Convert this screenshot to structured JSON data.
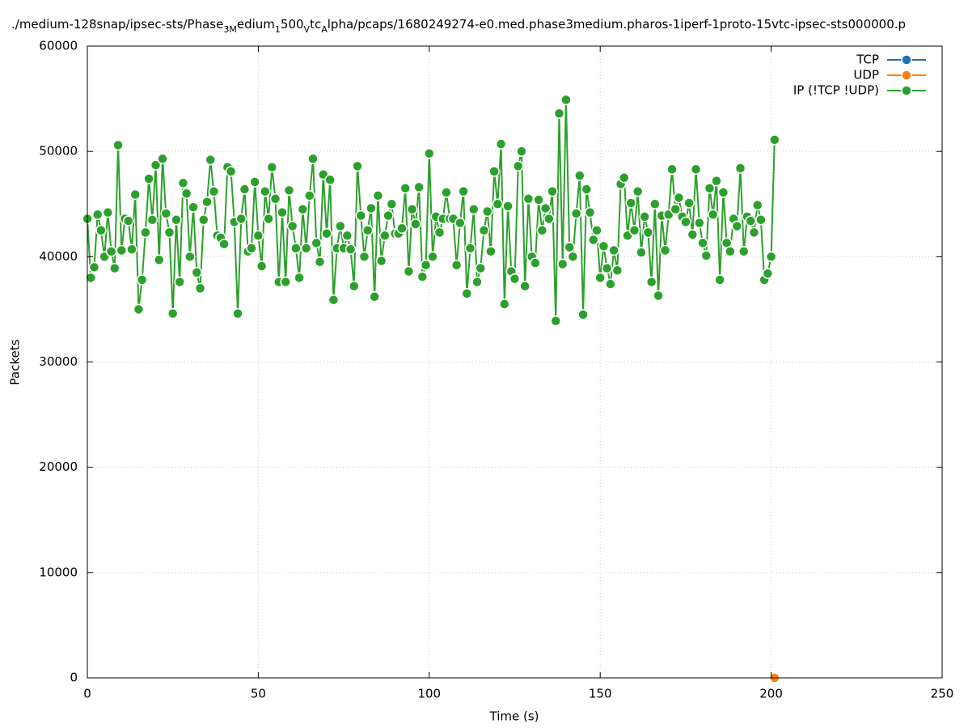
{
  "chart_data": {
    "type": "line",
    "title": [
      "./medium-128snap/ipsec-sts/Phase",
      "3M",
      "edium",
      "1",
      "500",
      "V",
      "tc",
      "A",
      "lpha/pcaps/1680249274-e0.med.phase3medium.pharos-1iperf-1proto-15vtc-ipsec-sts000000.p"
    ],
    "x_label": "Time (s)",
    "y_label": "Packets",
    "xlim": [
      0,
      250
    ],
    "xticks": [
      0,
      50,
      100,
      150,
      200,
      250
    ],
    "ylim": [
      0,
      60000
    ],
    "yticks": [
      0,
      10000,
      20000,
      30000,
      40000,
      50000,
      60000
    ],
    "grid": true,
    "legend": "top-right",
    "series": [
      {
        "name": "TCP",
        "color": "#1f6fb5",
        "x": [
          201
        ],
        "values": [
          0
        ]
      },
      {
        "name": "UDP",
        "color": "#ff7f0e",
        "x": [
          201
        ],
        "values": [
          0
        ]
      },
      {
        "name": "IP (!TCP  !UDP)",
        "color": "#2ca02c",
        "x": [
          0,
          1,
          2,
          3,
          4,
          5,
          6,
          7,
          8,
          9,
          10,
          11,
          12,
          13,
          14,
          15,
          16,
          17,
          18,
          19,
          20,
          21,
          22,
          23,
          24,
          25,
          26,
          27,
          28,
          29,
          30,
          31,
          32,
          33,
          34,
          35,
          36,
          37,
          38,
          39,
          40,
          41,
          42,
          43,
          44,
          45,
          46,
          47,
          48,
          49,
          50,
          51,
          52,
          53,
          54,
          55,
          56,
          57,
          58,
          59,
          60,
          61,
          62,
          63,
          64,
          65,
          66,
          67,
          68,
          69,
          70,
          71,
          72,
          73,
          74,
          75,
          76,
          77,
          78,
          79,
          80,
          81,
          82,
          83,
          84,
          85,
          86,
          87,
          88,
          89,
          90,
          91,
          92,
          93,
          94,
          95,
          96,
          97,
          98,
          99,
          100,
          101,
          102,
          103,
          104,
          105,
          106,
          107,
          108,
          109,
          110,
          111,
          112,
          113,
          114,
          115,
          116,
          117,
          118,
          119,
          120,
          121,
          122,
          123,
          124,
          125,
          126,
          127,
          128,
          129,
          130,
          131,
          132,
          133,
          134,
          135,
          136,
          137,
          138,
          139,
          140,
          141,
          142,
          143,
          144,
          145,
          146,
          147,
          148,
          149,
          150,
          151,
          152,
          153,
          154,
          155,
          156,
          157,
          158,
          159,
          160,
          161,
          162,
          163,
          164,
          165,
          166,
          167,
          168,
          169,
          170,
          171,
          172,
          173,
          174,
          175,
          176,
          177,
          178,
          179,
          180,
          181,
          182,
          183,
          184,
          185,
          186,
          187,
          188,
          189,
          190,
          191,
          192,
          193,
          194,
          195,
          196,
          197,
          198,
          199,
          200,
          201
        ],
        "values": [
          43600,
          38000,
          39000,
          44000,
          42500,
          40000,
          44200,
          40500,
          38900,
          50600,
          40600,
          43600,
          43400,
          40700,
          45900,
          35000,
          37800,
          42300,
          47400,
          43500,
          48700,
          39700,
          49300,
          44100,
          42300,
          34600,
          43500,
          37600,
          47000,
          46000,
          40000,
          44700,
          38500,
          37000,
          43500,
          45200,
          49200,
          46200,
          42000,
          41800,
          41200,
          48500,
          48100,
          43300,
          34600,
          43600,
          46400,
          40500,
          40800,
          47100,
          42000,
          39100,
          46200,
          43600,
          48500,
          45500,
          37600,
          44200,
          37600,
          46300,
          42900,
          40800,
          38000,
          44500,
          40800,
          45800,
          49300,
          41300,
          39500,
          47800,
          42200,
          47300,
          35900,
          40800,
          42900,
          40800,
          42000,
          40700,
          37200,
          48600,
          43900,
          40000,
          42500,
          44600,
          36200,
          45800,
          39600,
          42000,
          43900,
          45000,
          42200,
          42200,
          42700,
          46500,
          38600,
          44500,
          43100,
          46600,
          38100,
          39200,
          49800,
          40000,
          43800,
          42300,
          43600,
          46100,
          43600,
          43600,
          39200,
          43200,
          46200,
          36500,
          40800,
          44500,
          37600,
          38900,
          42500,
          44300,
          40500,
          48100,
          45000,
          50700,
          35500,
          44800,
          38600,
          37900,
          48600,
          50000,
          37200,
          45500,
          40000,
          39400,
          45400,
          42500,
          44600,
          43600,
          46200,
          33900,
          53600,
          39300,
          54900,
          40900,
          40000,
          44100,
          47700,
          34500,
          46400,
          44200,
          41600,
          42500,
          38000,
          41000,
          38900,
          37400,
          40600,
          38700,
          46900,
          47500,
          42000,
          45100,
          42500,
          46200,
          40400,
          43800,
          42300,
          37600,
          45000,
          36300,
          43900,
          40600,
          44000,
          48300,
          44500,
          45600,
          43800,
          43300,
          45100,
          42100,
          48300,
          43200,
          41300,
          40100,
          46500,
          44000,
          47200,
          37800,
          46100,
          41300,
          40500,
          43600,
          42900,
          48400,
          40500,
          43800,
          43400,
          42300,
          44900,
          43500,
          37800,
          38400,
          40000,
          51100
        ]
      }
    ]
  }
}
